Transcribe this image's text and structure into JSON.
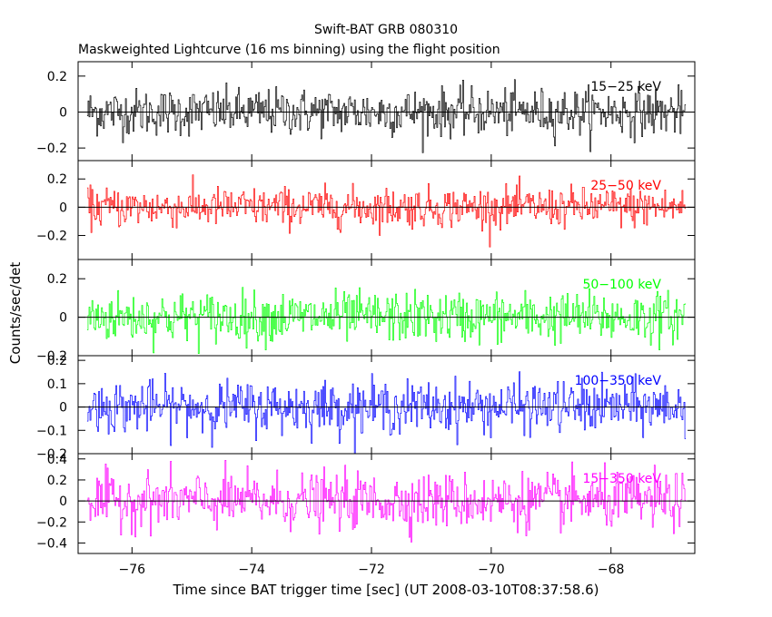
{
  "chart_data": {
    "type": "line",
    "title": "Swift-BAT GRB 080310",
    "subtitle": "Maskweighted Lightcurve (16 ms binning) using the flight position",
    "xlabel": "Time since BAT trigger time [sec] (UT 2008-03-10T08:37:58.6)",
    "ylabel": "Counts/sec/det",
    "xlim": [
      -76.9,
      -66.6
    ],
    "x_ticks": [
      -76,
      -74,
      -72,
      -70,
      -68
    ],
    "x_tick_labels": [
      "−76",
      "−74",
      "−72",
      "−70",
      "−68"
    ],
    "data_x_range": [
      -76.75,
      -66.75
    ],
    "bin_width_sec": 0.016,
    "grid": false,
    "panels": [
      {
        "name": "15−25 keV",
        "color": "#000000",
        "ylim": [
          -0.27,
          0.28
        ],
        "y_ticks": [
          -0.2,
          0,
          0.2
        ],
        "y_tick_labels": [
          "−0.2",
          "0",
          "0.2"
        ],
        "noise_amplitude": 0.065
      },
      {
        "name": "25−50 keV",
        "color": "#ff0000",
        "ylim": [
          -0.37,
          0.33
        ],
        "y_ticks": [
          -0.2,
          0,
          0.2
        ],
        "y_tick_labels": [
          "−0.2",
          "0",
          "0.2"
        ],
        "noise_amplitude": 0.07
      },
      {
        "name": "50−100 keV",
        "color": "#00ff00",
        "ylim": [
          -0.2,
          0.3
        ],
        "y_ticks": [
          -0.2,
          0,
          0.2
        ],
        "y_tick_labels": [
          "−0.2",
          "0",
          "0.2"
        ],
        "noise_amplitude": 0.065
      },
      {
        "name": "100−350 keV",
        "color": "#0000ff",
        "ylim": [
          -0.2,
          0.22
        ],
        "y_ticks": [
          -0.2,
          -0.1,
          0,
          0.1,
          0.2
        ],
        "y_tick_labels": [
          "−0.2",
          "−0.1",
          "0",
          "0.1",
          "0.2"
        ],
        "noise_amplitude": 0.055
      },
      {
        "name": "15−350 keV",
        "color": "#ff00ff",
        "ylim": [
          -0.5,
          0.45
        ],
        "y_ticks": [
          -0.4,
          -0.2,
          0,
          0.2,
          0.4
        ],
        "y_tick_labels": [
          "−0.4",
          "−0.2",
          "0",
          "0.2",
          "0.4"
        ],
        "noise_amplitude": 0.13
      }
    ]
  }
}
